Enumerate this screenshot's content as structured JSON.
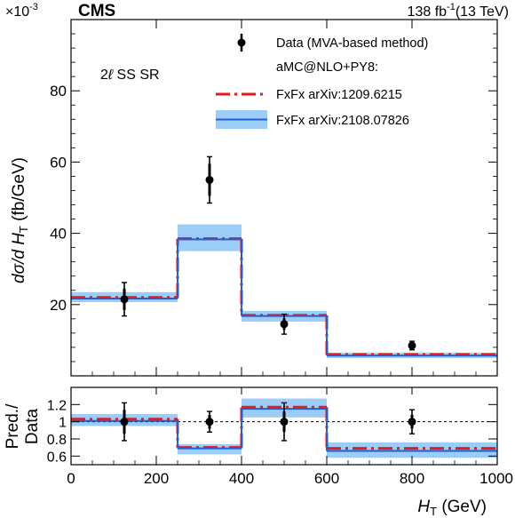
{
  "header": {
    "cms_label": "CMS",
    "luminosity_value": "138 fb",
    "luminosity_exp": "-1",
    "energy": "(13 TeV)",
    "scale_base": "×10",
    "scale_exp": "-3"
  },
  "annotation": {
    "region_prefix": "2",
    "region_ell": "ℓ",
    "region_suffix": " SS SR"
  },
  "legend": {
    "data_label": "Data (MVA-based method)",
    "group_header": "aMC@NLO+PY8:",
    "fxfx_old_label": "FxFx arXiv:1209.6215",
    "fxfx_new_label": "FxFx arXiv:2108.07826"
  },
  "axes": {
    "main_ylabel_prefix": "dσ/d ",
    "main_ylabel_var": "H",
    "main_ylabel_sub": "T",
    "main_ylabel_unit": " (fb/GeV)",
    "ratio_ylabel_top": "Pred./",
    "ratio_ylabel_bottom": "Data",
    "xlabel_var": "H",
    "xlabel_sub": "T",
    "xlabel_unit": " (GeV)"
  },
  "colors": {
    "data": "#000000",
    "fxfx_old": "#e41a1c",
    "fxfx_new": "#1f5fd6",
    "band": "#9ccdf7",
    "unity_line": "#000000"
  },
  "chart_data": [
    {
      "type": "line",
      "panel": "main",
      "bin_edges": [
        0,
        250,
        400,
        600,
        1000
      ],
      "xlim": [
        0,
        1000
      ],
      "ylim": [
        0,
        100
      ],
      "y_scale_factor": "1e-3",
      "yticks": [
        20,
        40,
        60,
        80
      ],
      "xlabel": "H_T (GeV)",
      "ylabel": "dσ/d H_T (fb/GeV)",
      "data": {
        "name": "Data (MVA-based method)",
        "x": [
          125,
          325,
          500,
          800
        ],
        "y": [
          21.5,
          55.0,
          14.5,
          8.5
        ],
        "err_stat": [
          3.0,
          4.5,
          1.6,
          0.7
        ],
        "err_total": [
          4.7,
          6.5,
          2.8,
          1.2
        ]
      },
      "series": [
        {
          "name": "FxFx arXiv:1209.6215",
          "style": "dashed",
          "values": [
            22.0,
            38.5,
            17.0,
            6.0
          ]
        },
        {
          "name": "FxFx arXiv:2108.07826",
          "style": "solid",
          "values": [
            21.7,
            38.3,
            16.8,
            5.7
          ],
          "band_low": [
            20.7,
            35.0,
            15.2,
            5.0
          ],
          "band_high": [
            23.5,
            42.5,
            18.2,
            6.5
          ]
        }
      ]
    },
    {
      "type": "line",
      "panel": "ratio",
      "bin_edges": [
        0,
        250,
        400,
        600,
        1000
      ],
      "xlim": [
        0,
        1000
      ],
      "ylim": [
        0.5,
        1.4
      ],
      "yticks": [
        0.6,
        0.8,
        1,
        1.2
      ],
      "ytick_labels": [
        "0.6",
        "0.8",
        "1",
        "1.2"
      ],
      "xticks": [
        0,
        200,
        400,
        600,
        800,
        1000
      ],
      "xtick_labels": [
        "0",
        "200",
        "400",
        "600",
        "800",
        "1000"
      ],
      "xlabel": "H_T (GeV)",
      "ylabel": "Pred./Data",
      "data": {
        "x": [
          125,
          325,
          500,
          800
        ],
        "y": [
          1.0,
          1.0,
          1.0,
          1.0
        ],
        "err_stat": [
          0.14,
          0.08,
          0.12,
          0.08
        ],
        "err_total": [
          0.22,
          0.12,
          0.22,
          0.14
        ]
      },
      "series": [
        {
          "name": "FxFx arXiv:1209.6215",
          "style": "dashed",
          "values": [
            1.03,
            0.7,
            1.17,
            0.69
          ]
        },
        {
          "name": "FxFx arXiv:2108.07826",
          "style": "solid",
          "values": [
            1.01,
            0.69,
            1.15,
            0.66
          ],
          "band_low": [
            0.95,
            0.62,
            1.05,
            0.58
          ],
          "band_high": [
            1.09,
            0.74,
            1.27,
            0.76
          ]
        }
      ]
    }
  ]
}
